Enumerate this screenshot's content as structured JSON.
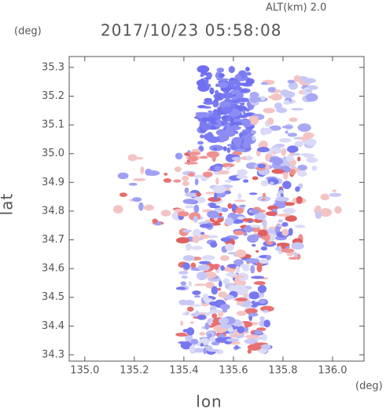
{
  "chart_data": {
    "type": "map",
    "title": "2017/10/23 05:58:08",
    "annotation": "ALT(km) 2.0",
    "x_label": "lon",
    "x_unit": "(deg)",
    "y_label": "lat",
    "y_unit": "(deg)",
    "xlim": [
      134.937,
      136.127
    ],
    "ylim": [
      34.278,
      35.338
    ],
    "xticks": [
      {
        "value": 135.0,
        "label": "135.0"
      },
      135.2,
      135.4,
      135.6,
      135.8,
      {
        "value": 136.0,
        "label": "136.0"
      }
    ],
    "yticks": [
      34.3,
      34.4,
      34.5,
      34.6,
      34.7,
      34.8,
      34.9,
      {
        "value": 35.0,
        "label": "35.0"
      },
      35.1,
      35.2,
      35.3
    ]
  }
}
